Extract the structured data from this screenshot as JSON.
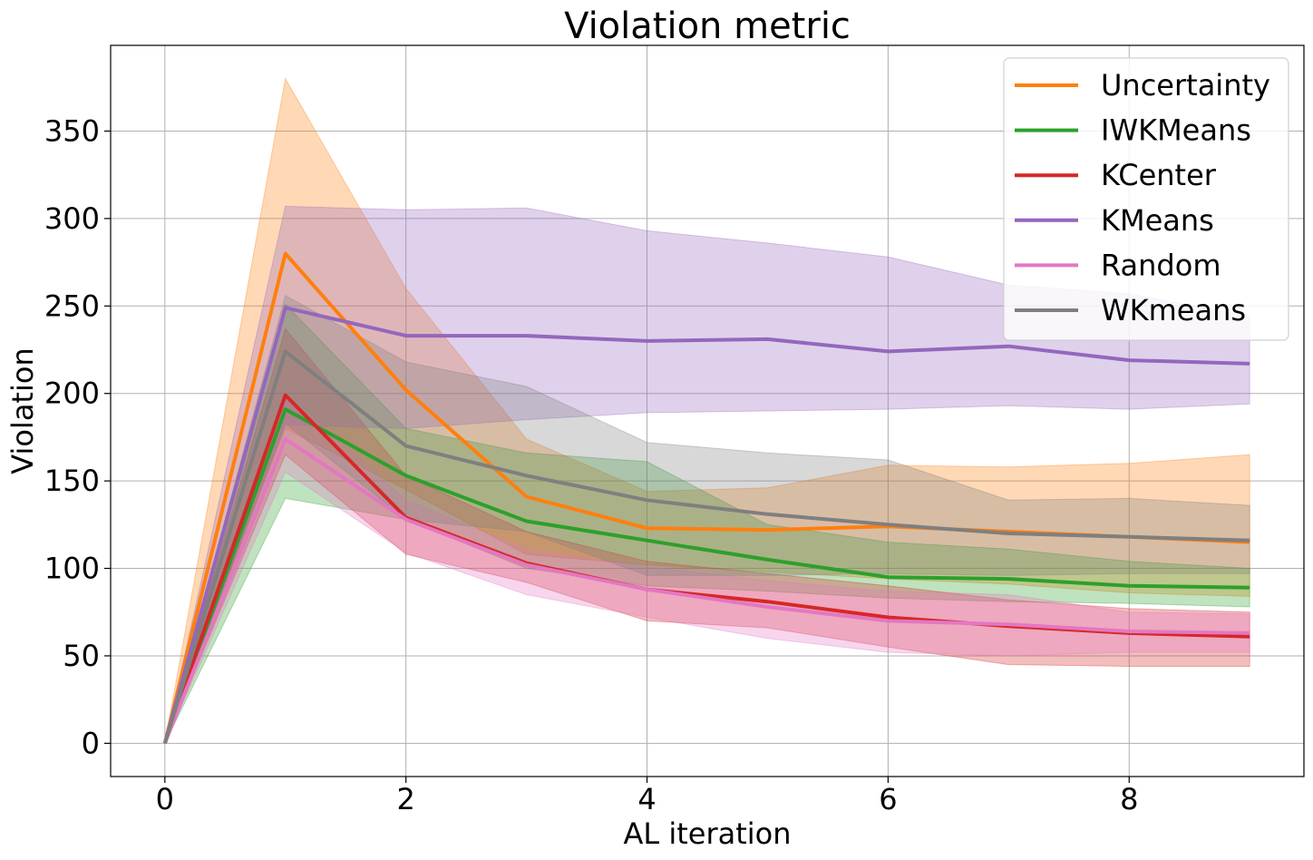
{
  "chart_data": {
    "type": "line",
    "title": "Violation metric",
    "xlabel": "AL iteration",
    "ylabel": "Violation",
    "xlim": [
      -0.45,
      9.45
    ],
    "ylim": [
      -19,
      399
    ],
    "xticks": [
      0,
      2,
      4,
      6,
      8
    ],
    "yticks": [
      0,
      50,
      100,
      150,
      200,
      250,
      300,
      350
    ],
    "grid": true,
    "legend_position": "top-right",
    "x": [
      0,
      1,
      2,
      3,
      4,
      5,
      6,
      7,
      8,
      9
    ],
    "series": [
      {
        "name": "Uncertainty",
        "color": "#ff7f0e",
        "values": [
          0,
          280,
          202,
          141,
          123,
          122,
          124,
          121,
          118,
          115
        ],
        "lower": [
          0,
          180,
          145,
          108,
          102,
          98,
          94,
          91,
          86,
          84
        ],
        "upper": [
          0,
          380,
          260,
          174,
          144,
          146,
          159,
          158,
          160,
          165
        ]
      },
      {
        "name": "IWKMeans",
        "color": "#2ca02c",
        "values": [
          0,
          191,
          153,
          127,
          116,
          105,
          95,
          94,
          90,
          89
        ],
        "lower": [
          0,
          140,
          128,
          100,
          90,
          87,
          83,
          81,
          80,
          78
        ],
        "upper": [
          0,
          251,
          180,
          166,
          161,
          125,
          115,
          111,
          104,
          100
        ]
      },
      {
        "name": "KCenter",
        "color": "#d62728",
        "values": [
          0,
          199,
          129,
          103,
          88,
          81,
          72,
          67,
          63,
          61
        ],
        "lower": [
          0,
          165,
          108,
          92,
          70,
          66,
          55,
          45,
          44,
          44
        ],
        "upper": [
          0,
          237,
          153,
          121,
          104,
          97,
          90,
          82,
          77,
          75
        ]
      },
      {
        "name": "KMeans",
        "color": "#9467bd",
        "values": [
          0,
          249,
          233,
          233,
          230,
          231,
          224,
          227,
          219,
          217
        ],
        "lower": [
          0,
          182,
          180,
          185,
          189,
          190,
          191,
          193,
          191,
          194
        ],
        "upper": [
          0,
          307,
          305,
          306,
          293,
          286,
          278,
          262,
          257,
          244
        ]
      },
      {
        "name": "Random",
        "color": "#e377c2",
        "values": [
          0,
          174,
          128,
          102,
          88,
          78,
          70,
          68,
          64,
          63
        ],
        "lower": [
          0,
          155,
          109,
          85,
          72,
          60,
          52,
          50,
          52,
          52
        ],
        "upper": [
          0,
          199,
          139,
          111,
          101,
          93,
          87,
          85,
          75,
          74
        ]
      },
      {
        "name": "WKmeans",
        "color": "#7f7f7f",
        "values": [
          0,
          224,
          170,
          153,
          139,
          131,
          125,
          120,
          118,
          116
        ],
        "lower": [
          0,
          183,
          128,
          121,
          96,
          96,
          97,
          96,
          97,
          97
        ],
        "upper": [
          0,
          256,
          218,
          204,
          172,
          166,
          162,
          139,
          140,
          136
        ]
      }
    ]
  }
}
